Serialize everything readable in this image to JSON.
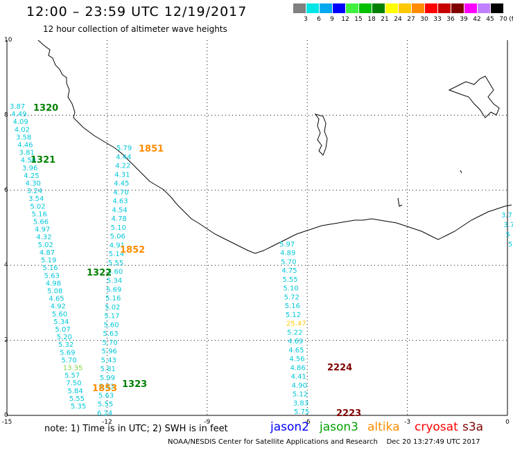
{
  "header": {
    "title": "12:00 – 23:59 UTC 12/19/2017",
    "subtitle": "12 hour collection of altimeter wave heights"
  },
  "color_scale": {
    "unit": "(ft)",
    "items": [
      {
        "label": "3",
        "color": "#808080"
      },
      {
        "label": "6",
        "color": "#00e5e5"
      },
      {
        "label": "9",
        "color": "#00a8f0"
      },
      {
        "label": "12",
        "color": "#0000ff"
      },
      {
        "label": "15",
        "color": "#40f040"
      },
      {
        "label": "18",
        "color": "#00c000"
      },
      {
        "label": "21",
        "color": "#008000"
      },
      {
        "label": "24",
        "color": "#ffff00"
      },
      {
        "label": "27",
        "color": "#ffc800"
      },
      {
        "label": "30",
        "color": "#ff8c00"
      },
      {
        "label": "33",
        "color": "#ff0000"
      },
      {
        "label": "36",
        "color": "#c80000"
      },
      {
        "label": "39",
        "color": "#800000"
      },
      {
        "label": "42",
        "color": "#ff00ff"
      },
      {
        "label": "45",
        "color": "#c080ff"
      },
      {
        "label": "70",
        "color": "#000000"
      }
    ]
  },
  "map_frame": {
    "lon_range": [
      -15,
      0
    ],
    "lat_range": [
      0,
      10
    ],
    "x_ticks": [
      "-15",
      "-12",
      "-9",
      "-6",
      "-3",
      "0"
    ],
    "y_ticks": [
      "0",
      "2",
      "4",
      "6",
      "8",
      "10"
    ]
  },
  "passes": [
    {
      "label": "1320",
      "color": "#008000"
    },
    {
      "label": "1321",
      "color": "#008000"
    },
    {
      "label": "1322",
      "color": "#008000"
    },
    {
      "label": "1323",
      "color": "#008000"
    },
    {
      "label": "1851",
      "color": "#ff8c00"
    },
    {
      "label": "1852",
      "color": "#ff8c00"
    },
    {
      "label": "1853",
      "color": "#ff8c00"
    },
    {
      "label": "2224",
      "color": "#800000"
    },
    {
      "label": "2223",
      "color": "#800000"
    }
  ],
  "tracks": [
    {
      "name": "track-1320-1321",
      "color": "#00c8d8",
      "values": [
        "3.87",
        "4.49",
        "4.09",
        "4.02",
        "3.58",
        "4.46",
        "3.81",
        "4.50",
        "3.96",
        "4.25",
        "4.30",
        "3.24",
        "3.54",
        "5.02",
        "5.16",
        "5.66",
        "4.97",
        "4.32",
        "5.02",
        "4.87",
        "5.19",
        "5.16",
        "5.63",
        "4.98",
        "5.08",
        "4.65",
        "4.92",
        "5.60",
        "5.34",
        "5.07",
        "5.20",
        "5.32",
        "5.69",
        "5.70",
        "13.35",
        "5.57",
        "7.50",
        "5.84",
        "5.55",
        "5.35"
      ]
    },
    {
      "name": "track-1851-1853",
      "color": "#00c8d8",
      "values": [
        "5.79",
        "4.44",
        "4.22",
        "4.31",
        "4.45",
        "4.70",
        "4.63",
        "4.54",
        "4.78",
        "5.10",
        "5.06",
        "4.91",
        "5.14",
        "5.55",
        "5.60",
        "5.34",
        "5.69",
        "5.16",
        "5.02",
        "5.17",
        "5.60",
        "5.63",
        "5.70",
        "5.96",
        "5.43",
        "5.81",
        "5.99",
        "5.63",
        "5.63",
        "5.55",
        "6.24"
      ]
    },
    {
      "name": "track-2223-2224",
      "color": "#00c8d8",
      "values": [
        "5.97",
        "4.89",
        "5.70",
        "4.75",
        "5.55",
        "5.10",
        "5.72",
        "5.16",
        "5.12",
        "25.47",
        "5.22",
        "4.69",
        "4.65",
        "4.56",
        "4.86",
        "4.41",
        "4.90",
        "5.12",
        "3.83",
        "5.75"
      ]
    },
    {
      "name": "track-east-edge",
      "color": "#00c8d8",
      "values": [
        "3.7",
        "3.7",
        "5",
        "5"
      ]
    }
  ],
  "note": {
    "text": "note:  1) Time is in UTC;  2) SWH is in feet"
  },
  "satellites": [
    {
      "label": "jason2",
      "color": "#0000ff"
    },
    {
      "label": "jason3",
      "color": "#00a000"
    },
    {
      "label": "altika",
      "color": "#ff8c00"
    },
    {
      "label": "cryosat",
      "color": "#ff0000"
    },
    {
      "label": "s3a",
      "color": "#800000"
    }
  ],
  "footer": {
    "credit": "NOAA/NESDIS Center for Satellite Applications and Research",
    "timestamp": "Dec 20 13:27:49 UTC 2017"
  }
}
